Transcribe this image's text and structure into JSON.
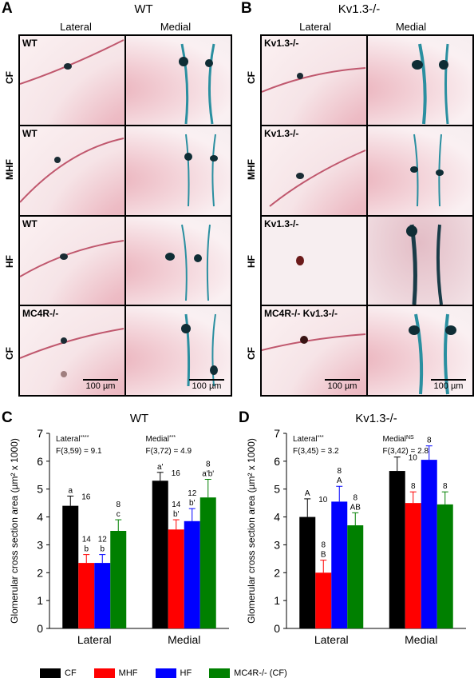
{
  "panelA": {
    "letter": "A",
    "title": "WT",
    "col_left": "Lateral",
    "col_right": "Medial",
    "rows": [
      {
        "row_label": "CF",
        "cell_label": "WT"
      },
      {
        "row_label": "MHF",
        "cell_label": "WT"
      },
      {
        "row_label": "HF",
        "cell_label": "WT"
      },
      {
        "row_label": "CF",
        "cell_label": "MC4R-/-"
      }
    ],
    "scale_label": "100 µm"
  },
  "panelB": {
    "letter": "B",
    "title": "Kv1.3-/-",
    "col_left": "Lateral",
    "col_right": "Medial",
    "rows": [
      {
        "row_label": "CF",
        "cell_label": "Kv1.3-/-"
      },
      {
        "row_label": "MHF",
        "cell_label": "Kv1.3-/-"
      },
      {
        "row_label": "HF",
        "cell_label": "Kv1.3-/-"
      },
      {
        "row_label": "CF",
        "cell_label": "MC4R-/- Kv1.3-/-"
      }
    ],
    "scale_label": "100 µm"
  },
  "colors": {
    "CF": "#000000",
    "MHF": "#ff0000",
    "HF": "#0000ff",
    "MC4R": "#008000"
  },
  "chart_data": [
    {
      "panel": "C",
      "type": "bar",
      "title": "WT",
      "ylabel": "Glomerular cross section area (µm² x 1000)",
      "ylim": [
        0,
        7
      ],
      "yticks": [
        "0",
        "1",
        "2",
        "3",
        "4",
        "5",
        "6",
        "7"
      ],
      "categories": [
        "Lateral",
        "Medial"
      ],
      "stats": [
        {
          "name": "Lateral",
          "sig": "****",
          "f": "F(3,59) = 9.1"
        },
        {
          "name": "Medial",
          "sig": "***",
          "f": "F(3,72) = 4.9"
        }
      ],
      "series": [
        {
          "name": "CF",
          "values": [
            4.4,
            5.3
          ],
          "err": [
            0.35,
            0.3
          ],
          "n": [
            "16",
            "16"
          ],
          "letters": [
            "a",
            "a'"
          ]
        },
        {
          "name": "MHF",
          "values": [
            2.35,
            3.55
          ],
          "err": [
            0.3,
            0.35
          ],
          "n": [
            "14",
            "14"
          ],
          "letters": [
            "b",
            "b'"
          ]
        },
        {
          "name": "HF",
          "values": [
            2.35,
            3.85
          ],
          "err": [
            0.3,
            0.45
          ],
          "n": [
            "12",
            "12"
          ],
          "letters": [
            "b",
            "b'"
          ]
        },
        {
          "name": "MC4R-/- (CF)",
          "values": [
            3.5,
            4.7
          ],
          "err": [
            0.4,
            0.65
          ],
          "n": [
            "8",
            "8"
          ],
          "letters": [
            "c",
            "a'b'"
          ]
        }
      ]
    },
    {
      "panel": "D",
      "type": "bar",
      "title": "Kv1.3-/-",
      "ylabel": "Glomerular cross section area (µm² x 1000)",
      "ylim": [
        0,
        7
      ],
      "yticks": [
        "0",
        "1",
        "2",
        "3",
        "4",
        "5",
        "6",
        "7"
      ],
      "categories": [
        "Lateral",
        "Medial"
      ],
      "stats": [
        {
          "name": "Lateral",
          "sig": "***",
          "f": "F(3,45) = 3.2"
        },
        {
          "name": "Medial",
          "sig": "NS",
          "f": "F(3,42) = 2.8"
        }
      ],
      "series": [
        {
          "name": "CF",
          "values": [
            4.0,
            5.65
          ],
          "err": [
            0.65,
            0.5
          ],
          "n": [
            "10",
            "10"
          ],
          "letters": [
            "A",
            ""
          ]
        },
        {
          "name": "MHF",
          "values": [
            2.0,
            4.5
          ],
          "err": [
            0.45,
            0.4
          ],
          "n": [
            "8",
            "8"
          ],
          "letters": [
            "B",
            ""
          ]
        },
        {
          "name": "HF",
          "values": [
            4.55,
            6.05
          ],
          "err": [
            0.55,
            0.5
          ],
          "n": [
            "8",
            "8"
          ],
          "letters": [
            "A",
            ""
          ]
        },
        {
          "name": "MC4R-/- (CF)",
          "values": [
            3.7,
            4.45
          ],
          "err": [
            0.45,
            0.45
          ],
          "n": [
            "8",
            "8"
          ],
          "letters": [
            "AB",
            ""
          ]
        }
      ]
    }
  ],
  "legend": [
    {
      "label": "CF",
      "color": "#000000"
    },
    {
      "label": "MHF",
      "color": "#ff0000"
    },
    {
      "label": "HF",
      "color": "#0000ff"
    },
    {
      "label": "MC4R-/- (CF)",
      "color": "#008000"
    }
  ]
}
